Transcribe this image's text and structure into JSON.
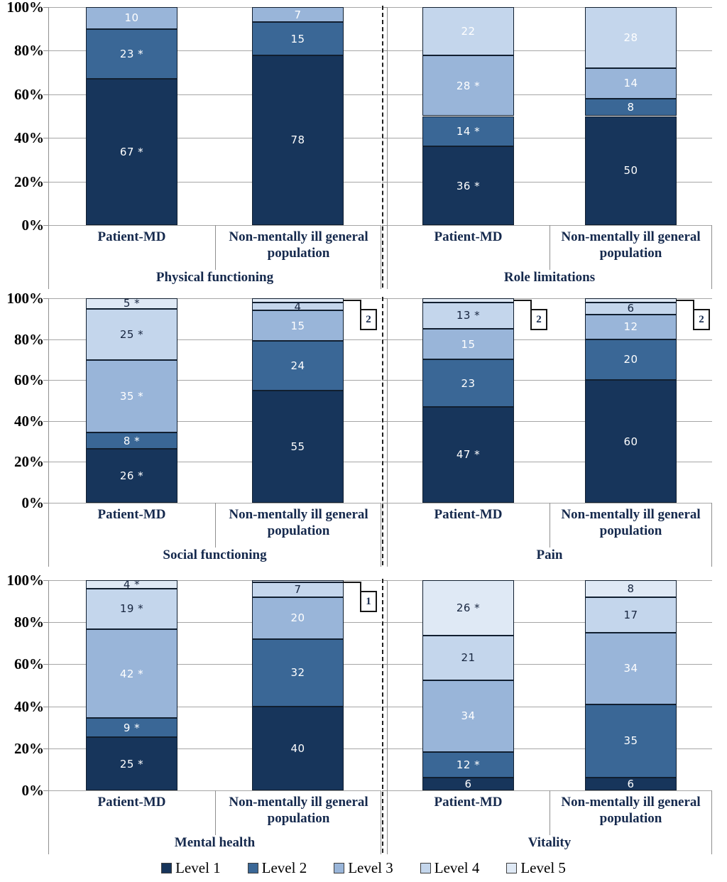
{
  "chart_data": {
    "type": "bar",
    "subtype": "stacked-100-percent",
    "orientation": "vertical",
    "y_axis": {
      "ticks": [
        "100%",
        "80%",
        "60%",
        "40%",
        "20%",
        "0%"
      ],
      "range": [
        0,
        100
      ],
      "gridlines": true
    },
    "group_labels": [
      "Patient-MD",
      "Non-mentally ill general population"
    ],
    "legend_position": "bottom",
    "significance_marker": "*",
    "levels": [
      {
        "name": "Level 1",
        "color": "#17355B",
        "label_color": "#FFFFFF"
      },
      {
        "name": "Level 2",
        "color": "#3A6796",
        "label_color": "#FFFFFF"
      },
      {
        "name": "Level 3",
        "color": "#99B5D9",
        "label_color": "#FFFFFF"
      },
      {
        "name": "Level 4",
        "color": "#C4D6EC",
        "label_color": "#17253F"
      },
      {
        "name": "Level 5",
        "color": "#DFE9F5",
        "label_color": "#17253F"
      }
    ],
    "panels": [
      {
        "title": "Physical functioning",
        "bars": [
          {
            "group": "Patient-MD",
            "segments": [
              {
                "level": 1,
                "value": 67,
                "starred": true
              },
              {
                "level": 2,
                "value": 23,
                "starred": true
              },
              {
                "level": 3,
                "value": 10
              }
            ]
          },
          {
            "group": "Non-mentally ill general population",
            "segments": [
              {
                "level": 1,
                "value": 78
              },
              {
                "level": 2,
                "value": 15
              },
              {
                "level": 3,
                "value": 7
              }
            ]
          }
        ]
      },
      {
        "title": "Role limitations",
        "bars": [
          {
            "group": "Patient-MD",
            "segments": [
              {
                "level": 1,
                "value": 36,
                "starred": true
              },
              {
                "level": 2,
                "value": 14,
                "starred": true
              },
              {
                "level": 3,
                "value": 28,
                "starred": true
              },
              {
                "level": 4,
                "value": 22,
                "label_color": "#FFFFFF"
              }
            ]
          },
          {
            "group": "Non-mentally ill general population",
            "segments": [
              {
                "level": 1,
                "value": 50
              },
              {
                "level": 2,
                "value": 8
              },
              {
                "level": 3,
                "value": 14
              },
              {
                "level": 4,
                "value": 28,
                "label_color": "#FFFFFF"
              }
            ]
          }
        ]
      },
      {
        "title": "Social functioning",
        "bars": [
          {
            "group": "Patient-MD",
            "segments": [
              {
                "level": 1,
                "value": 26,
                "starred": true
              },
              {
                "level": 2,
                "value": 8,
                "starred": true
              },
              {
                "level": 3,
                "value": 35,
                "starred": true
              },
              {
                "level": 4,
                "value": 25,
                "starred": true
              },
              {
                "level": 5,
                "value": 5,
                "starred": true
              }
            ]
          },
          {
            "group": "Non-mentally ill general population",
            "segments": [
              {
                "level": 1,
                "value": 55
              },
              {
                "level": 2,
                "value": 24
              },
              {
                "level": 3,
                "value": 15
              },
              {
                "level": 4,
                "value": 4
              },
              {
                "level": 5,
                "value": 2,
                "callout": true
              }
            ]
          }
        ]
      },
      {
        "title": "Pain",
        "bars": [
          {
            "group": "Patient-MD",
            "segments": [
              {
                "level": 1,
                "value": 47,
                "starred": true
              },
              {
                "level": 2,
                "value": 23
              },
              {
                "level": 3,
                "value": 15
              },
              {
                "level": 4,
                "value": 13,
                "starred": true
              },
              {
                "level": 5,
                "value": 2,
                "callout": true
              }
            ]
          },
          {
            "group": "Non-mentally ill general population",
            "segments": [
              {
                "level": 1,
                "value": 60
              },
              {
                "level": 2,
                "value": 20
              },
              {
                "level": 3,
                "value": 12
              },
              {
                "level": 4,
                "value": 6
              },
              {
                "level": 5,
                "value": 2,
                "callout": true
              }
            ]
          }
        ]
      },
      {
        "title": "Mental health",
        "bars": [
          {
            "group": "Patient-MD",
            "segments": [
              {
                "level": 1,
                "value": 25,
                "starred": true
              },
              {
                "level": 2,
                "value": 9,
                "starred": true
              },
              {
                "level": 3,
                "value": 42,
                "starred": true
              },
              {
                "level": 4,
                "value": 19,
                "starred": true
              },
              {
                "level": 5,
                "value": 4,
                "starred": true
              }
            ]
          },
          {
            "group": "Non-mentally ill general population",
            "segments": [
              {
                "level": 1,
                "value": 40
              },
              {
                "level": 2,
                "value": 32
              },
              {
                "level": 3,
                "value": 20
              },
              {
                "level": 4,
                "value": 7
              },
              {
                "level": 5,
                "value": 1,
                "callout": true
              }
            ]
          }
        ]
      },
      {
        "title": "Vitality",
        "bars": [
          {
            "group": "Patient-MD",
            "segments": [
              {
                "level": 1,
                "value": 6
              },
              {
                "level": 2,
                "value": 12,
                "starred": true
              },
              {
                "level": 3,
                "value": 34
              },
              {
                "level": 4,
                "value": 21
              },
              {
                "level": 5,
                "value": 26,
                "starred": true
              }
            ]
          },
          {
            "group": "Non-mentally ill general population",
            "segments": [
              {
                "level": 1,
                "value": 6
              },
              {
                "level": 2,
                "value": 35
              },
              {
                "level": 3,
                "value": 34
              },
              {
                "level": 4,
                "value": 17
              },
              {
                "level": 5,
                "value": 8
              }
            ]
          }
        ]
      }
    ]
  }
}
